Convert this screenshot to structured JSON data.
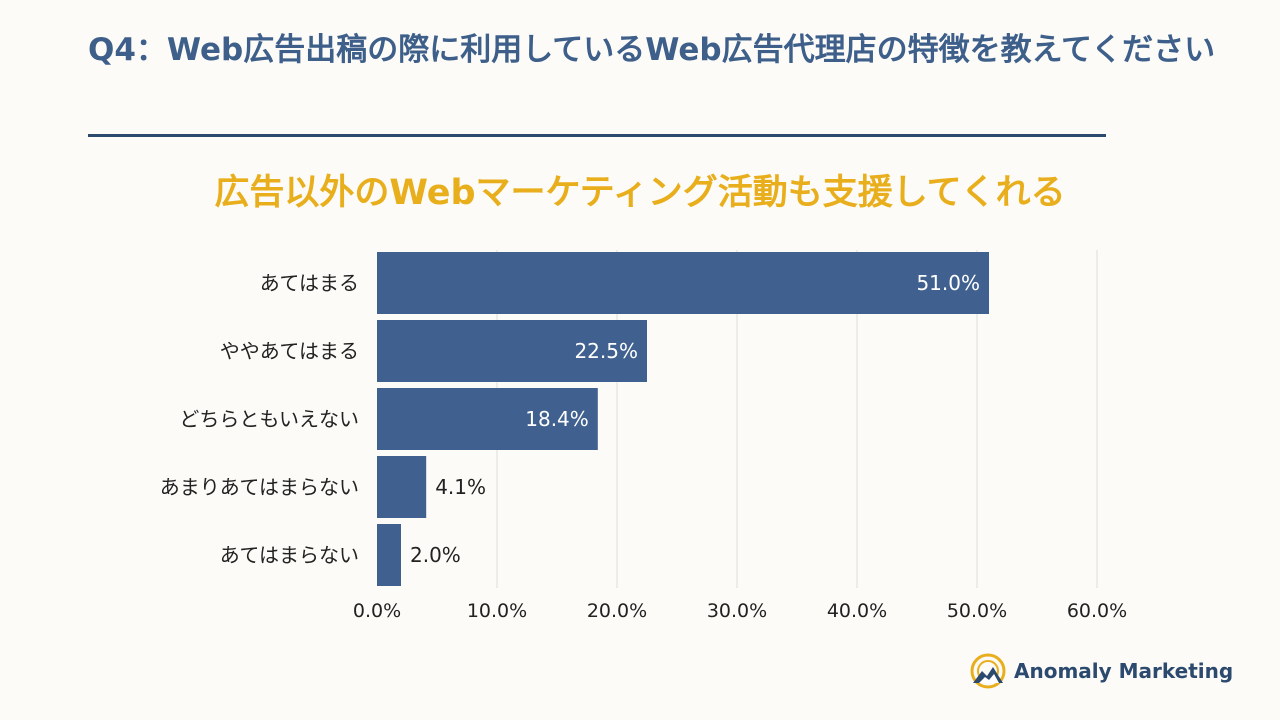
{
  "page": {
    "question_title": "Q4：Web広告出稿の際に利用しているWeb広告代理店の特徴を教えてください",
    "brand_name": "Anomaly Marketing"
  },
  "colors": {
    "bar": "#40618f",
    "title": "#3d5f8a",
    "chart_title": "#e8ae1c",
    "grid": "#dcdcdc"
  },
  "chart_data": {
    "type": "bar",
    "orientation": "horizontal",
    "title": "広告以外のWebマーケティング活動も支援してくれる",
    "categories": [
      "あてはまる",
      "ややあてはまる",
      "どちらともいえない",
      "あまりあてはまらない",
      "あてはまらない"
    ],
    "values": [
      51.0,
      22.5,
      18.4,
      4.1,
      2.0
    ],
    "value_labels": [
      "51.0%",
      "22.5%",
      "18.4%",
      "4.1%",
      "2.0%"
    ],
    "xlim": [
      0,
      60
    ],
    "xticks": [
      0,
      10,
      20,
      30,
      40,
      50,
      60
    ],
    "xtick_labels": [
      "0.0%",
      "10.0%",
      "20.0%",
      "30.0%",
      "40.0%",
      "50.0%",
      "60.0%"
    ],
    "grid": true,
    "legend": "none"
  }
}
